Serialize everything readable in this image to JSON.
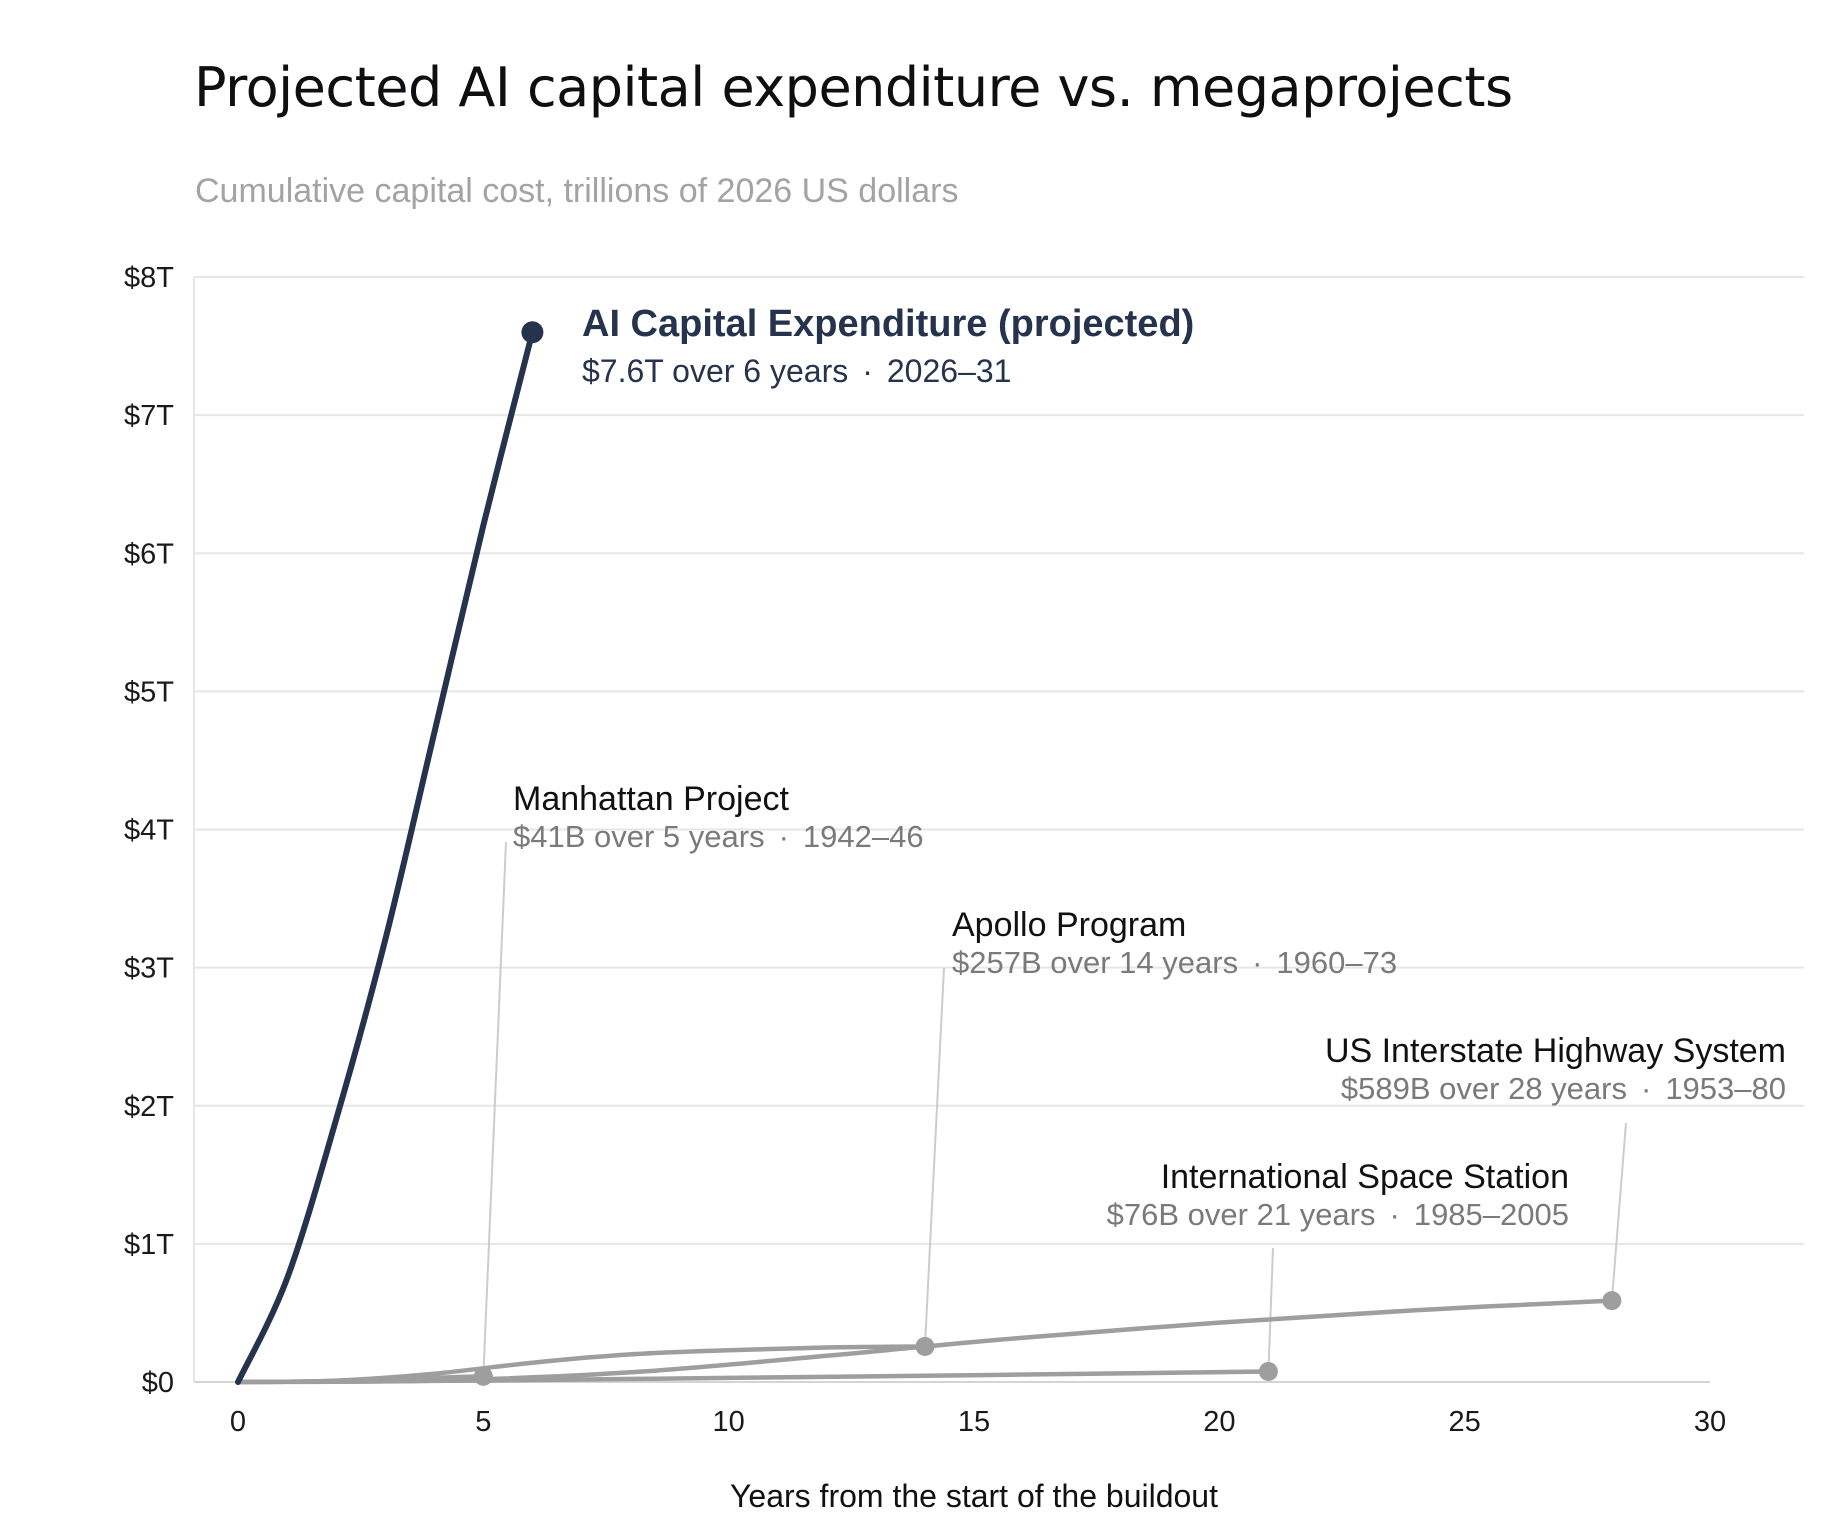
{
  "title": "Projected AI capital expenditure vs. megaprojects",
  "subtitle": "Cumulative capital cost, trillions of 2026 US dollars",
  "chart_data": {
    "type": "line",
    "title": "Projected AI capital expenditure vs. megaprojects",
    "subtitle": "Cumulative capital cost, trillions of 2026 US dollars",
    "xlabel": "Years from the start of the buildout",
    "ylabel": "",
    "xlim": [
      0,
      30
    ],
    "ylim": [
      0,
      8
    ],
    "x_ticks": [
      "0",
      "5",
      "10",
      "15",
      "20",
      "25",
      "30"
    ],
    "y_ticks": [
      "$0",
      "$1T",
      "$2T",
      "$3T",
      "$4T",
      "$5T",
      "$6T",
      "$7T",
      "$8T"
    ],
    "grid": "horizontal",
    "legend": "none",
    "colors": {
      "highlight": "#26334d",
      "comparison": "#9e9e9e",
      "leader": "#cccccc",
      "grid": "#e6e6e6"
    },
    "series": [
      {
        "name": "AI Capital Expenditure (projected)",
        "detail": "$7.6T over 6 years",
        "years": "2026–31",
        "highlight": true,
        "x": [
          0,
          1,
          2,
          3,
          4,
          5,
          6
        ],
        "y": [
          0,
          0.75,
          1.9,
          3.2,
          4.7,
          6.2,
          7.6
        ]
      },
      {
        "name": "Manhattan Project",
        "detail": "$41B over 5 years",
        "years": "1942–46",
        "x": [
          0,
          1,
          2,
          3,
          4,
          5
        ],
        "y": [
          0,
          0.002,
          0.007,
          0.017,
          0.03,
          0.041
        ]
      },
      {
        "name": "Apollo Program",
        "detail": "$257B over 14 years",
        "years": "1960–73",
        "x": [
          0,
          2,
          4,
          6,
          8,
          10,
          12,
          14
        ],
        "y": [
          0,
          0.01,
          0.06,
          0.14,
          0.2,
          0.23,
          0.25,
          0.257
        ]
      },
      {
        "name": "International Space Station",
        "detail": "$76B over 21 years",
        "years": "1985–2005",
        "x": [
          0,
          3,
          7,
          10,
          14,
          18,
          21
        ],
        "y": [
          0,
          0.005,
          0.018,
          0.03,
          0.045,
          0.062,
          0.076
        ]
      },
      {
        "name": "US Interstate Highway System",
        "detail": "$589B over 28 years",
        "years": "1953–80",
        "x": [
          0,
          4,
          8,
          12,
          14,
          16,
          20,
          24,
          28
        ],
        "y": [
          0,
          0.01,
          0.07,
          0.19,
          0.257,
          0.32,
          0.43,
          0.52,
          0.589
        ]
      }
    ]
  }
}
